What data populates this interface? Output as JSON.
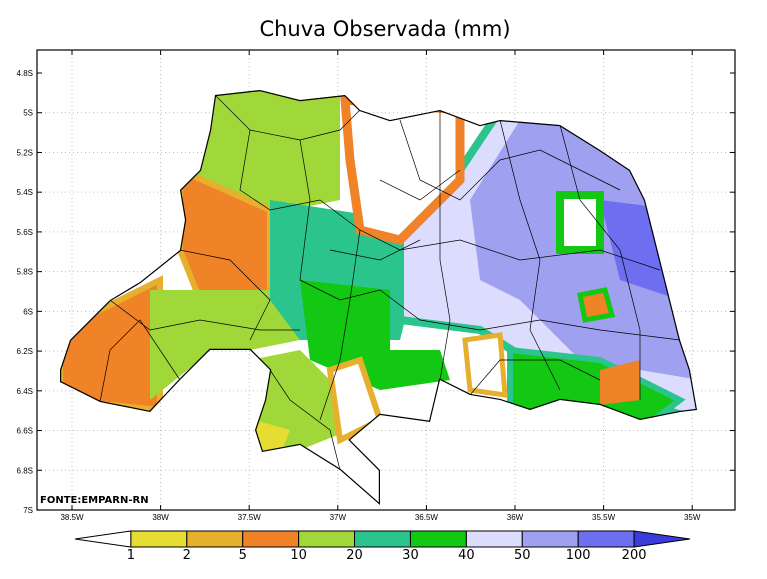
{
  "title": "Chuva Observada (mm)",
  "axes": {
    "y_labels": [
      "4.8S",
      "5S",
      "5.2S",
      "5.4S",
      "5.6S",
      "5.8S",
      "6S",
      "6.2S",
      "6.4S",
      "6.6S",
      "6.8S",
      "7S"
    ],
    "x_labels": [
      "38.5W",
      "38W",
      "37.5W",
      "37W",
      "36.5W",
      "36W",
      "35.5W",
      "35W"
    ]
  },
  "source": "FONTE:EMPARN-RN",
  "legend": {
    "levels": [
      1,
      2,
      5,
      10,
      20,
      30,
      40,
      50,
      100,
      200
    ],
    "colors": [
      "#ffffff",
      "#e6dc32",
      "#e6af2d",
      "#f08228",
      "#a0d83a",
      "#2ac48c",
      "#12c812",
      "#dcdcff",
      "#a0a0f0",
      "#6e6ef0",
      "#3c3cdc"
    ]
  }
}
